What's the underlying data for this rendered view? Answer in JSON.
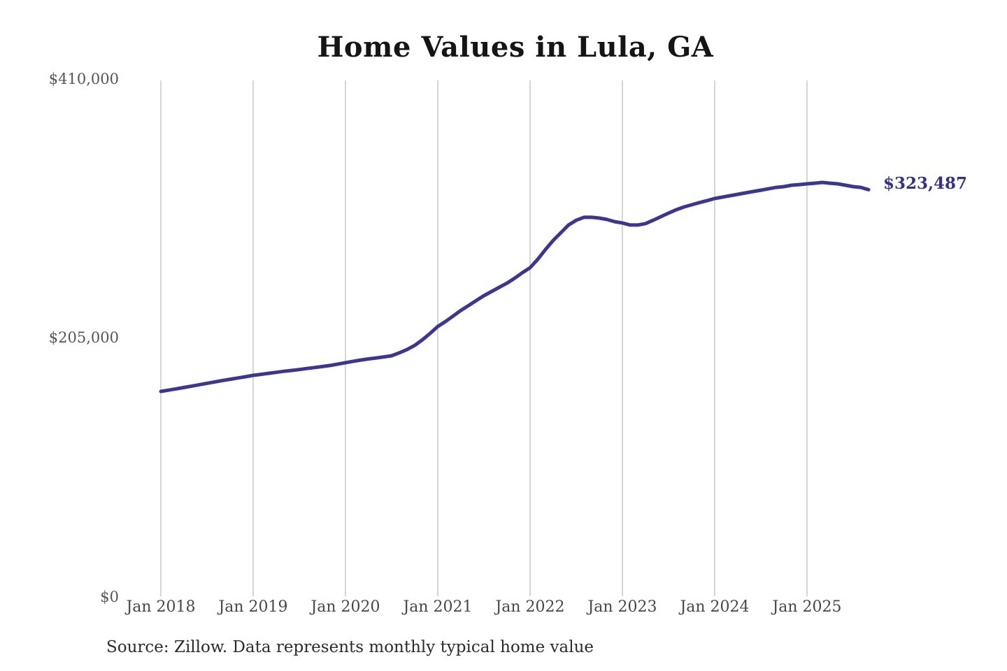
{
  "chart": {
    "title": "Home Values in Lula, GA",
    "value_label": "$323,487",
    "source": "Source: Zillow. Data represents monthly typical home value",
    "colors": {
      "line": "#3b3598",
      "value_label": "#34308e",
      "gridline": "#c9c9c9",
      "axis_text": "#555555",
      "title_text": "#151515"
    }
  },
  "chart_data": {
    "type": "line",
    "title": "Home Values in Lula, GA",
    "xlabel": "",
    "ylabel": "",
    "ylim": [
      0,
      410000
    ],
    "grid": "vertical-only",
    "legend": "none",
    "y_ticks": [
      "$0",
      "$205,000",
      "$410,000"
    ],
    "x_ticks": [
      "Jan 2018",
      "Jan 2019",
      "Jan 2020",
      "Jan 2021",
      "Jan 2022",
      "Jan 2023",
      "Jan 2024",
      "Jan 2025"
    ],
    "last_value": 323487,
    "last_value_label": "$323,487",
    "x": [
      "2018-01",
      "2018-02",
      "2018-03",
      "2018-04",
      "2018-05",
      "2018-06",
      "2018-07",
      "2018-08",
      "2018-09",
      "2018-10",
      "2018-11",
      "2018-12",
      "2019-01",
      "2019-02",
      "2019-03",
      "2019-04",
      "2019-05",
      "2019-06",
      "2019-07",
      "2019-08",
      "2019-09",
      "2019-10",
      "2019-11",
      "2019-12",
      "2020-01",
      "2020-02",
      "2020-03",
      "2020-04",
      "2020-05",
      "2020-06",
      "2020-07",
      "2020-08",
      "2020-09",
      "2020-10",
      "2020-11",
      "2020-12",
      "2021-01",
      "2021-02",
      "2021-03",
      "2021-04",
      "2021-05",
      "2021-06",
      "2021-07",
      "2021-08",
      "2021-09",
      "2021-10",
      "2021-11",
      "2021-12",
      "2022-01",
      "2022-02",
      "2022-03",
      "2022-04",
      "2022-05",
      "2022-06",
      "2022-07",
      "2022-08",
      "2022-09",
      "2022-10",
      "2022-11",
      "2022-12",
      "2023-01",
      "2023-02",
      "2023-03",
      "2023-04",
      "2023-05",
      "2023-06",
      "2023-07",
      "2023-08",
      "2023-09",
      "2023-10",
      "2023-11",
      "2023-12",
      "2024-01",
      "2024-02",
      "2024-03",
      "2024-04",
      "2024-05",
      "2024-06",
      "2024-07",
      "2024-08",
      "2024-09",
      "2024-10",
      "2024-11",
      "2024-12",
      "2025-01",
      "2025-02",
      "2025-03",
      "2025-04",
      "2025-05",
      "2025-06",
      "2025-07",
      "2025-08",
      "2025-09"
    ],
    "series": [
      {
        "name": "Typical home value",
        "values": [
          163800,
          164800,
          165800,
          166900,
          168000,
          169100,
          170200,
          171300,
          172400,
          173400,
          174400,
          175400,
          176500,
          177300,
          178100,
          178900,
          179700,
          180400,
          181100,
          181900,
          182700,
          183500,
          184300,
          185400,
          186500,
          187600,
          188600,
          189500,
          190300,
          191100,
          192000,
          194300,
          196900,
          200200,
          204600,
          209700,
          215200,
          219100,
          223500,
          227900,
          231800,
          235700,
          239600,
          242900,
          246200,
          249500,
          253400,
          257800,
          261700,
          268400,
          276100,
          283300,
          289400,
          295500,
          299300,
          301600,
          301600,
          301000,
          299900,
          298200,
          297100,
          295500,
          295500,
          296600,
          299300,
          302100,
          304900,
          307600,
          309800,
          311500,
          313200,
          314800,
          316500,
          317600,
          318700,
          319800,
          320900,
          322000,
          323100,
          324200,
          325300,
          325900,
          327000,
          327500,
          328100,
          328600,
          329200,
          328600,
          328100,
          327000,
          325900,
          325300,
          323487
        ]
      }
    ]
  }
}
